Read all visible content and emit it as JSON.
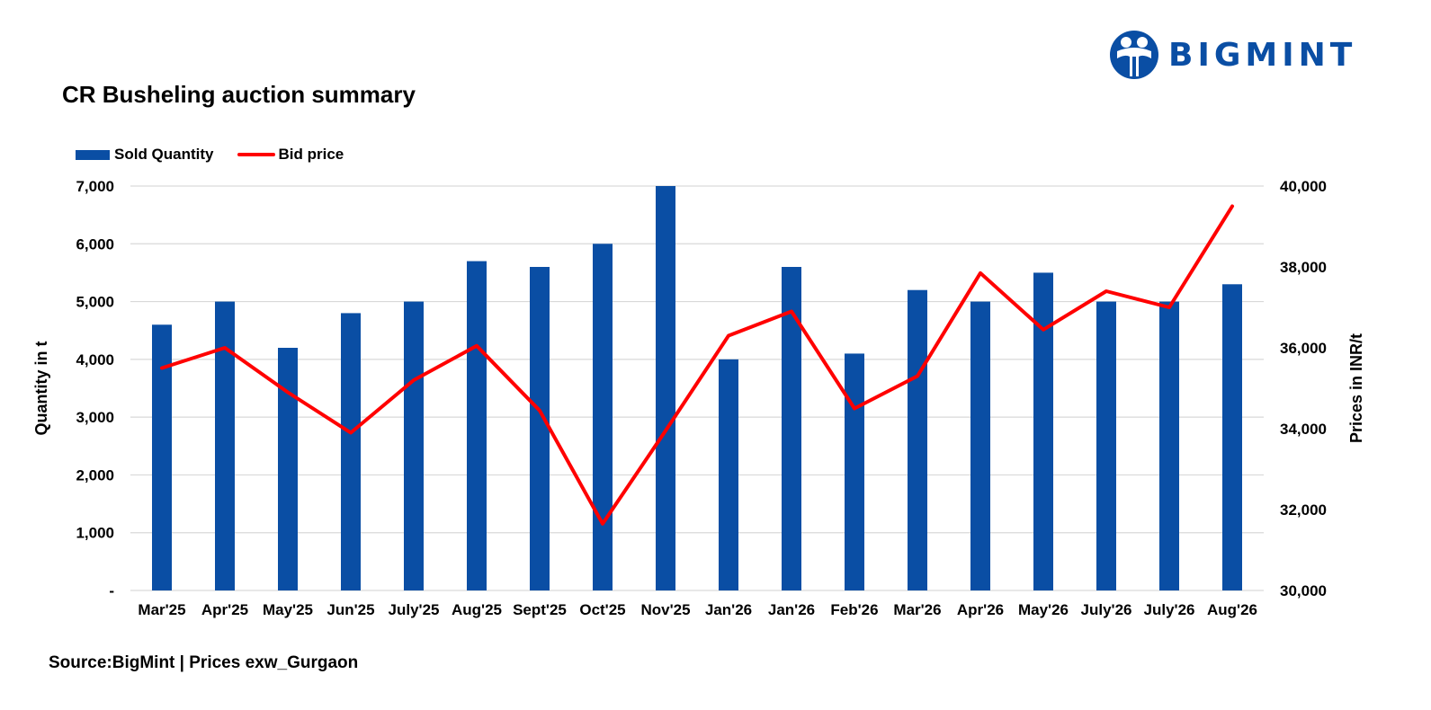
{
  "logo": {
    "text": "BIGMINT",
    "color": "#0A4EA4"
  },
  "source": "Source:BigMint | Prices exw_Gurgaon",
  "chart_data": {
    "type": "bar",
    "title": "CR Busheling auction summary",
    "categories": [
      "Mar'25",
      "Apr'25",
      "May'25",
      "Jun'25",
      "July'25",
      "Aug'25",
      "Sept'25",
      "Oct'25",
      "Nov'25",
      "Jan'26",
      "Jan'26",
      "Feb'26",
      "Mar'26",
      "Apr'26",
      "May'26",
      "July'26",
      "July'26",
      "Aug'26"
    ],
    "series": [
      {
        "name": "Sold Quantity",
        "type": "bar",
        "axis": "left",
        "color": "#0A4EA4",
        "values": [
          4600,
          5000,
          4200,
          4800,
          5000,
          5700,
          5600,
          6000,
          7000,
          4000,
          5600,
          4100,
          5200,
          5000,
          5500,
          5000,
          5000,
          5300
        ]
      },
      {
        "name": "Bid price",
        "type": "line",
        "axis": "right",
        "color": "#FF0000",
        "values": [
          35500,
          36000,
          34900,
          33900,
          35200,
          36050,
          34450,
          31650,
          33950,
          36300,
          36900,
          34500,
          35300,
          37850,
          36450,
          37400,
          37000,
          39500
        ]
      }
    ],
    "ylabel": "Quantity in t",
    "y2label": "Prices in INR/t",
    "ylim": [
      0,
      7000
    ],
    "y2lim": [
      30000,
      40000
    ],
    "yticks": [
      "-",
      "1,000",
      "2,000",
      "3,000",
      "4,000",
      "5,000",
      "6,000",
      "7,000"
    ],
    "y2ticks": [
      "30,000",
      "32,000",
      "34,000",
      "36,000",
      "38,000",
      "40,000"
    ],
    "grid": true,
    "legend": "top-left"
  }
}
